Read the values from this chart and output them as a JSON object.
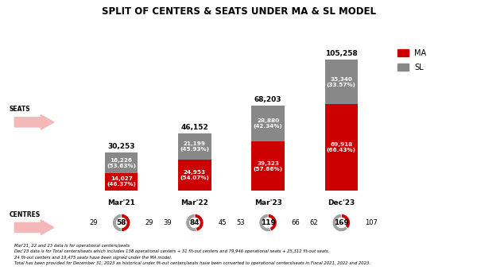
{
  "title": "SPLIT OF CENTERS & SEATS UNDER MA & SL MODEL",
  "periods": [
    "Mar'21",
    "Mar'22",
    "Mar'23",
    "Dec'23"
  ],
  "ma_values": [
    14027,
    24953,
    39323,
    69918
  ],
  "sl_values": [
    16226,
    21199,
    28880,
    35340
  ],
  "totals": [
    30253,
    46152,
    68203,
    105258
  ],
  "ma_pct": [
    "46.37%",
    "54.07%",
    "57.66%",
    "66.43%"
  ],
  "sl_pct": [
    "53.63%",
    "45.93%",
    "42.34%",
    "33.57%"
  ],
  "ma_color": "#CC0000",
  "sl_color": "#888888",
  "donut_ma_color": "#CC0000",
  "donut_sl_color": "#A0A0A0",
  "centres_total": [
    58,
    84,
    119,
    169
  ],
  "centres_ma": [
    29,
    39,
    53,
    62
  ],
  "centres_sl": [
    29,
    45,
    66,
    107
  ],
  "footnotes": [
    "Mar'21, 22 and 23 data is for operational centers/seats",
    "Dec'23 data is for Total centers/seats which includes 138 operational centers + 31 fit-out centers and 79,946 operational seats + 25,312 fit-out seats.",
    "24 fit-out centers and 19,475 seats have been signed under the MA model.",
    "Total has been provided for December 31, 2023 as historical under fit-out centers/seats have been converted to operational centers/seats in Fiscal 2021, 2022 and 2023."
  ]
}
